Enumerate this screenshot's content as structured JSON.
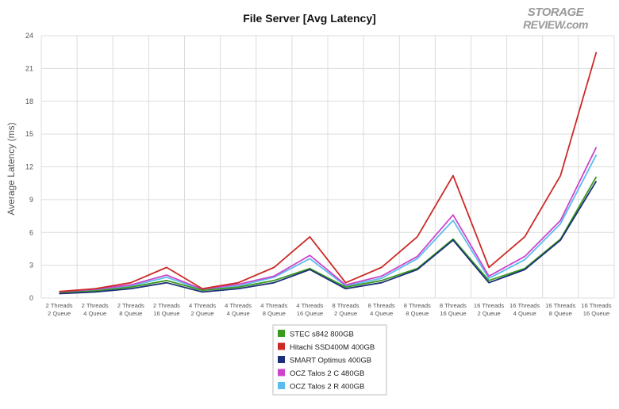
{
  "chart_data": {
    "type": "line",
    "title": "File Server [Avg Latency]",
    "xlabel": "",
    "ylabel": "Average Latency (ms)",
    "ylim": [
      0,
      24
    ],
    "yticks": [
      0,
      3,
      6,
      9,
      12,
      15,
      18,
      21,
      24
    ],
    "grid": true,
    "legend_position": "bottom",
    "categories": [
      [
        "2 Threads",
        "2 Queue"
      ],
      [
        "2 Threads",
        "4 Queue"
      ],
      [
        "2 Threads",
        "8 Queue"
      ],
      [
        "2 Threads",
        "16 Queue"
      ],
      [
        "4 Threads",
        "2 Queue"
      ],
      [
        "4 Threads",
        "4 Queue"
      ],
      [
        "4 Threads",
        "8 Queue"
      ],
      [
        "4 Threads",
        "16 Queue"
      ],
      [
        "8 Threads",
        "2 Queue"
      ],
      [
        "8 Threads",
        "4 Queue"
      ],
      [
        "8 Threads",
        "8 Queue"
      ],
      [
        "8 Threads",
        "16 Queue"
      ],
      [
        "16 Threads",
        "2 Queue"
      ],
      [
        "16 Threads",
        "4 Queue"
      ],
      [
        "16 Threads",
        "8 Queue"
      ],
      [
        "16 Threads",
        "16 Queue"
      ]
    ],
    "series": [
      {
        "name": "STEC s842 800GB",
        "color": "#3a9a1e",
        "values": [
          0.45,
          0.65,
          1.0,
          1.6,
          0.7,
          1.0,
          1.6,
          2.7,
          1.0,
          1.6,
          2.7,
          5.4,
          1.6,
          2.7,
          5.4,
          11.1
        ]
      },
      {
        "name": "Hitachi SSD400M 400GB",
        "color": "#cc2a26",
        "values": [
          0.6,
          0.85,
          1.4,
          2.8,
          0.85,
          1.4,
          2.8,
          5.6,
          1.4,
          2.8,
          5.6,
          11.2,
          2.8,
          5.6,
          11.2,
          22.5
        ]
      },
      {
        "name": "SMART Optimus 400GB",
        "color": "#1c2f7a",
        "values": [
          0.4,
          0.55,
          0.85,
          1.4,
          0.55,
          0.85,
          1.4,
          2.6,
          0.85,
          1.4,
          2.6,
          5.3,
          1.4,
          2.6,
          5.3,
          10.7
        ]
      },
      {
        "name": "OCZ Talos 2 C 480GB",
        "color": "#cc44cc",
        "values": [
          0.55,
          0.8,
          1.2,
          2.1,
          0.8,
          1.25,
          2.0,
          3.9,
          1.2,
          2.0,
          3.8,
          7.6,
          2.0,
          3.8,
          7.1,
          13.8
        ]
      },
      {
        "name": "OCZ Talos 2 R 400GB",
        "color": "#5bbcee",
        "values": [
          0.5,
          0.75,
          1.1,
          1.9,
          0.75,
          1.1,
          1.9,
          3.6,
          1.1,
          1.8,
          3.6,
          7.1,
          1.8,
          3.5,
          6.8,
          13.1
        ]
      }
    ]
  },
  "logo": {
    "line1": "STORAGE",
    "line2": "REVIEW.com"
  }
}
